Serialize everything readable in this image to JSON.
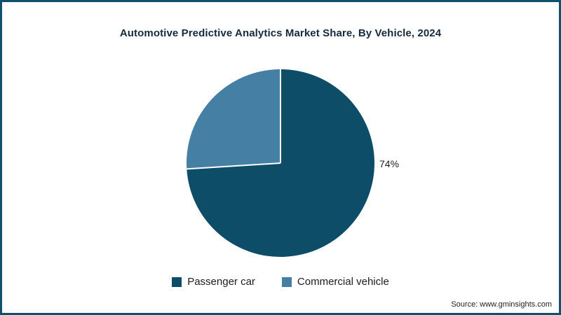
{
  "title": "Automotive Predictive Analytics Market Share, By Vehicle, 2024",
  "source": {
    "label": "Source: www.gminsights.com"
  },
  "chart_data": {
    "type": "pie",
    "title": "Automotive Predictive Analytics Market Share, By Vehicle, 2024",
    "slices": [
      {
        "label": "Passenger car",
        "value": 74,
        "data_label": "74%",
        "color": "#0e4d67"
      },
      {
        "label": "Commercial vehicle",
        "value": 26,
        "data_label": "",
        "color": "#4580a4"
      }
    ],
    "start_angle_deg": -90,
    "direction": "clockwise",
    "legend_position": "bottom",
    "separator_color": "#ffffff",
    "border_color": "#11506b",
    "background_color": "#ffffff"
  }
}
